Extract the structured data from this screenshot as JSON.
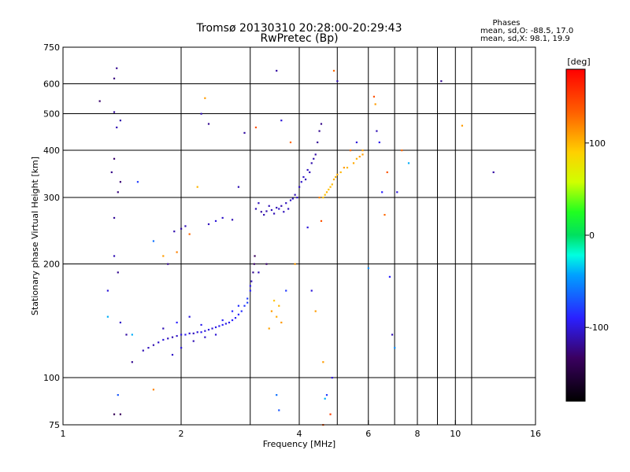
{
  "chart_data": {
    "type": "scatter",
    "title": "Tromsø 20130310 20:28:00-20:29:43",
    "subtitle": "RwPretec (Bp)",
    "xlabel": "Frequency [MHz]",
    "ylabel": "Stationary phase Virtual Height [km]",
    "x_scale": "log",
    "y_scale": "log",
    "xlim": [
      1,
      16
    ],
    "ylim": [
      75,
      750
    ],
    "x_ticks": [
      1,
      2,
      4,
      6,
      8,
      10,
      16
    ],
    "x_tick_labels": [
      "1",
      "2",
      "4",
      "6",
      "8",
      "10",
      "16"
    ],
    "x_grid_lines": [
      2,
      3,
      4,
      5,
      6,
      7,
      8,
      9,
      10,
      11
    ],
    "y_ticks": [
      75,
      100,
      200,
      300,
      400,
      500,
      600,
      750
    ],
    "y_tick_labels": [
      "75",
      "100",
      "200",
      "300",
      "400",
      "500",
      "600",
      "750"
    ],
    "y_grid_lines": [
      100,
      200,
      300,
      400,
      500,
      600
    ],
    "grid": true,
    "phases_box": {
      "title": "Phases",
      "line1": "mean, sd,O: -88.5, 17.0",
      "line2": "mean, sd,X:  98.1, 19.9"
    },
    "colorbar": {
      "label": "[deg]",
      "range": [
        -180,
        180
      ],
      "ticks": [
        100,
        0,
        -100
      ],
      "tick_labels": [
        "100",
        "0",
        "-100"
      ]
    },
    "series": [
      {
        "points": [
          [
            1.6,
            118,
            -110
          ],
          [
            1.65,
            120,
            -108
          ],
          [
            1.7,
            122,
            -112
          ],
          [
            1.75,
            124,
            -105
          ],
          [
            1.8,
            126,
            -100
          ],
          [
            1.85,
            127,
            -108
          ],
          [
            1.9,
            128,
            -110
          ],
          [
            1.95,
            129,
            -105
          ],
          [
            2.0,
            130,
            -100
          ],
          [
            2.05,
            130,
            -95
          ],
          [
            2.1,
            131,
            -102
          ],
          [
            2.15,
            131,
            -108
          ],
          [
            2.2,
            132,
            -100
          ],
          [
            2.25,
            132,
            -95
          ],
          [
            2.3,
            133,
            -100
          ],
          [
            2.35,
            134,
            -98
          ],
          [
            2.4,
            135,
            -102
          ],
          [
            2.45,
            136,
            -96
          ],
          [
            2.5,
            137,
            -95
          ],
          [
            2.55,
            138,
            -92
          ],
          [
            2.6,
            139,
            -98
          ],
          [
            2.65,
            140,
            -95
          ],
          [
            2.7,
            142,
            -90
          ],
          [
            2.75,
            144,
            -92
          ],
          [
            2.8,
            147,
            -88
          ],
          [
            2.85,
            150,
            -85
          ],
          [
            2.9,
            155,
            -82
          ],
          [
            2.95,
            162,
            -80
          ],
          [
            3.0,
            170,
            -90
          ],
          [
            3.02,
            180,
            -110
          ],
          [
            3.05,
            190,
            -120
          ],
          [
            3.07,
            200,
            -130
          ],
          [
            3.08,
            210,
            -135
          ],
          [
            1.9,
            115,
            -105
          ],
          [
            2.0,
            120,
            -100
          ],
          [
            2.15,
            125,
            -110
          ],
          [
            2.3,
            128,
            -105
          ],
          [
            2.45,
            130,
            -102
          ],
          [
            1.95,
            140,
            -90
          ],
          [
            2.1,
            145,
            -98
          ],
          [
            2.25,
            138,
            -95
          ],
          [
            2.55,
            142,
            -92
          ],
          [
            2.7,
            150,
            -88
          ],
          [
            2.8,
            155,
            -84
          ],
          [
            2.95,
            158,
            -78
          ],
          [
            3.0,
            175,
            -95
          ],
          [
            1.8,
            135,
            -110
          ],
          [
            1.85,
            200,
            -120
          ],
          [
            2.0,
            248,
            -115
          ],
          [
            2.05,
            252,
            -110
          ],
          [
            2.45,
            260,
            -100
          ],
          [
            2.55,
            265,
            -105
          ],
          [
            2.7,
            262,
            -110
          ],
          [
            2.35,
            255,
            -108
          ],
          [
            1.92,
            244,
            -112
          ],
          [
            3.1,
            280,
            -110
          ],
          [
            3.2,
            275,
            -115
          ],
          [
            3.3,
            276,
            -112
          ],
          [
            3.4,
            278,
            -108
          ],
          [
            3.5,
            282,
            -110
          ],
          [
            3.6,
            285,
            -112
          ],
          [
            3.7,
            290,
            -108
          ],
          [
            3.8,
            295,
            -105
          ],
          [
            3.9,
            305,
            -110
          ],
          [
            4.0,
            320,
            -108
          ],
          [
            4.1,
            340,
            -105
          ],
          [
            4.2,
            355,
            -108
          ],
          [
            4.3,
            370,
            -112
          ],
          [
            4.4,
            390,
            -115
          ],
          [
            4.45,
            420,
            -118
          ],
          [
            4.5,
            450,
            -120
          ],
          [
            4.55,
            470,
            -122
          ],
          [
            3.15,
            290,
            -108
          ],
          [
            3.35,
            285,
            -110
          ],
          [
            3.55,
            280,
            -105
          ],
          [
            3.75,
            280,
            -108
          ],
          [
            3.95,
            300,
            -106
          ],
          [
            4.05,
            330,
            -104
          ],
          [
            4.25,
            350,
            -110
          ],
          [
            3.25,
            270,
            -112
          ],
          [
            3.45,
            272,
            -110
          ],
          [
            3.65,
            275,
            -108
          ],
          [
            3.85,
            298,
            -104
          ],
          [
            4.15,
            335,
            -110
          ],
          [
            4.35,
            380,
            -112
          ],
          [
            4.6,
            300,
            95
          ],
          [
            4.7,
            310,
            100
          ],
          [
            4.8,
            320,
            98
          ],
          [
            4.9,
            335,
            102
          ],
          [
            5.0,
            345,
            105
          ],
          [
            5.1,
            350,
            100
          ],
          [
            4.75,
            315,
            96
          ],
          [
            4.85,
            325,
            99
          ],
          [
            4.95,
            340,
            101
          ],
          [
            4.65,
            305,
            97
          ],
          [
            5.3,
            360,
            100
          ],
          [
            5.5,
            370,
            105
          ],
          [
            5.7,
            385,
            110
          ],
          [
            5.8,
            400,
            108
          ],
          [
            5.6,
            380,
            102
          ],
          [
            3.4,
            150,
            110
          ],
          [
            3.5,
            145,
            105
          ],
          [
            3.55,
            155,
            100
          ],
          [
            3.6,
            140,
            112
          ],
          [
            3.45,
            160,
            95
          ],
          [
            3.35,
            135,
            108
          ],
          [
            1.3,
            170,
            -100
          ],
          [
            1.35,
            210,
            -110
          ],
          [
            1.38,
            190,
            -120
          ],
          [
            1.4,
            140,
            -105
          ],
          [
            1.45,
            130,
            -115
          ],
          [
            1.5,
            110,
            -120
          ],
          [
            1.35,
            80,
            -140
          ],
          [
            1.4,
            80,
            -135
          ],
          [
            1.35,
            265,
            -118
          ],
          [
            1.38,
            310,
            -125
          ],
          [
            1.35,
            380,
            -130
          ],
          [
            1.4,
            330,
            -128
          ],
          [
            1.33,
            350,
            -122
          ],
          [
            1.37,
            460,
            -110
          ],
          [
            1.4,
            480,
            -112
          ],
          [
            1.35,
            505,
            -118
          ],
          [
            1.35,
            620,
            -125
          ],
          [
            1.37,
            660,
            -120
          ],
          [
            1.24,
            540,
            -130
          ],
          [
            1.5,
            130,
            -40
          ],
          [
            1.55,
            330,
            -80
          ],
          [
            1.7,
            230,
            -60
          ],
          [
            1.8,
            210,
            110
          ],
          [
            1.95,
            215,
            120
          ],
          [
            2.1,
            240,
            130
          ],
          [
            2.2,
            320,
            100
          ],
          [
            2.25,
            500,
            -110
          ],
          [
            2.3,
            550,
            110
          ],
          [
            2.35,
            470,
            -120
          ],
          [
            2.8,
            320,
            -110
          ],
          [
            2.9,
            445,
            -115
          ],
          [
            3.1,
            460,
            140
          ],
          [
            3.15,
            190,
            -110
          ],
          [
            3.3,
            200,
            -130
          ],
          [
            3.5,
            650,
            -115
          ],
          [
            3.6,
            480,
            -100
          ],
          [
            3.7,
            170,
            -80
          ],
          [
            3.8,
            420,
            130
          ],
          [
            3.9,
            200,
            110
          ],
          [
            4.2,
            250,
            -100
          ],
          [
            4.3,
            170,
            -100
          ],
          [
            4.4,
            150,
            110
          ],
          [
            4.5,
            300,
            120
          ],
          [
            4.55,
            260,
            140
          ],
          [
            4.6,
            110,
            110
          ],
          [
            4.7,
            90,
            -80
          ],
          [
            4.8,
            80,
            150
          ],
          [
            4.85,
            100,
            -100
          ],
          [
            4.9,
            650,
            130
          ],
          [
            5.0,
            610,
            -110
          ],
          [
            5.2,
            360,
            110
          ],
          [
            5.4,
            400,
            130
          ],
          [
            5.6,
            420,
            -100
          ],
          [
            5.8,
            390,
            110
          ],
          [
            6.0,
            195,
            -50
          ],
          [
            6.2,
            555,
            140
          ],
          [
            6.25,
            530,
            110
          ],
          [
            6.3,
            450,
            -110
          ],
          [
            6.4,
            420,
            -95
          ],
          [
            6.5,
            310,
            -90
          ],
          [
            6.6,
            270,
            130
          ],
          [
            6.7,
            350,
            140
          ],
          [
            6.8,
            185,
            -90
          ],
          [
            6.9,
            130,
            -110
          ],
          [
            7.0,
            120,
            -50
          ],
          [
            7.1,
            310,
            -100
          ],
          [
            7.3,
            400,
            130
          ],
          [
            7.6,
            370,
            -40
          ],
          [
            9.2,
            610,
            -120
          ],
          [
            10.4,
            465,
            110
          ],
          [
            12.5,
            350,
            -115
          ],
          [
            1.3,
            145,
            -40
          ],
          [
            1.38,
            90,
            -70
          ],
          [
            1.7,
            93,
            120
          ],
          [
            3.5,
            90,
            -60
          ],
          [
            3.55,
            82,
            -70
          ],
          [
            4.6,
            75,
            140
          ],
          [
            4.65,
            88,
            -40
          ]
        ]
      }
    ]
  }
}
